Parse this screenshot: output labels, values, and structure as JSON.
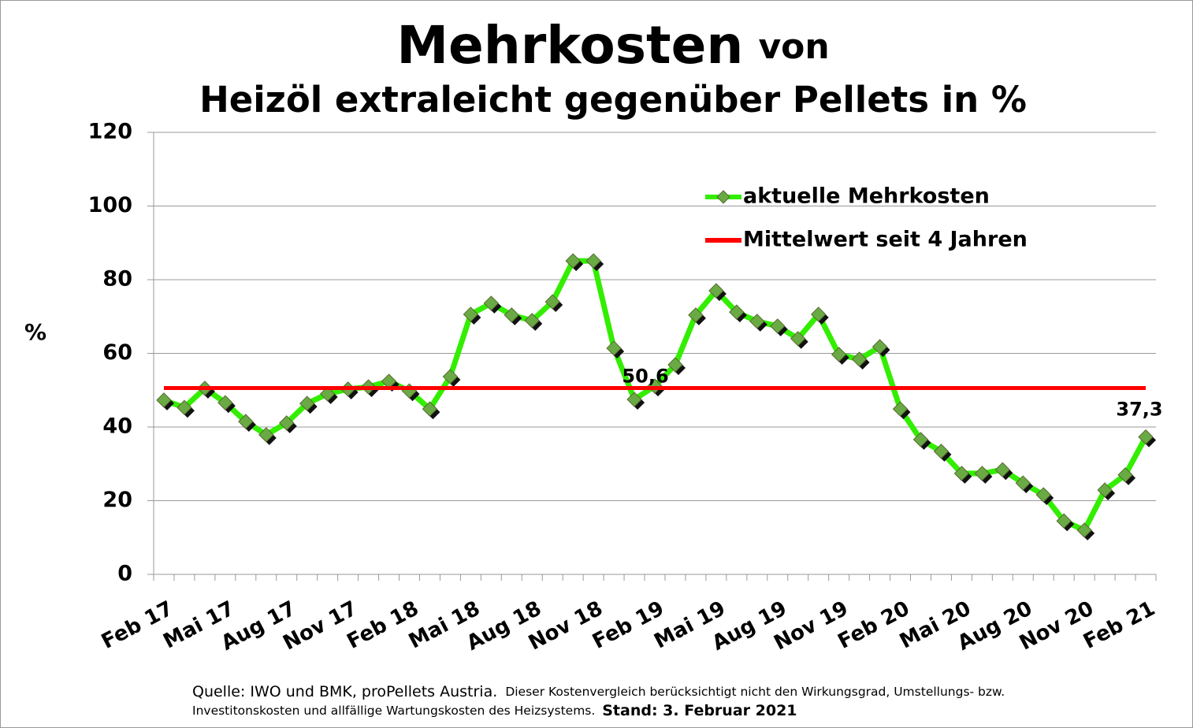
{
  "chart_data": {
    "type": "line",
    "title": "Mehrkosten",
    "title_suffix": "von",
    "subtitle": "Heizöl extraleicht gegenüber Pellets in %",
    "y_label": "%",
    "categories": [
      "Feb 17",
      null,
      null,
      "Mai 17",
      null,
      null,
      "Aug 17",
      null,
      null,
      "Nov 17",
      null,
      null,
      "Feb 18",
      null,
      null,
      "Mai 18",
      null,
      null,
      "Aug 18",
      null,
      null,
      "Nov 18",
      null,
      null,
      "Feb 19",
      null,
      null,
      "Mai 19",
      null,
      null,
      "Aug 19",
      null,
      null,
      "Nov 19",
      null,
      null,
      "Feb 20",
      null,
      null,
      "Mai 20",
      null,
      null,
      "Aug 20",
      null,
      null,
      "Nov 20",
      null,
      null,
      "Feb 21"
    ],
    "series": [
      {
        "name": "aktuelle Mehrkosten",
        "color": "#33ee00",
        "marker_color": "#6aaa44",
        "values": [
          47.3,
          45.3,
          50.5,
          46.6,
          41.5,
          37.9,
          41.1,
          46.4,
          49,
          50.3,
          50.9,
          52.4,
          49.8,
          44.9,
          53.7,
          70.6,
          73.6,
          70.4,
          68.9,
          74,
          85.1,
          85.1,
          61.4,
          47.5,
          51.1,
          56.9,
          70.4,
          77,
          71.2,
          68.7,
          67.4,
          64,
          70.6,
          59.7,
          58.4,
          61.8,
          44.9,
          36.6,
          33.4,
          27.4,
          27.4,
          28.4,
          24.8,
          21.6,
          14.5,
          12,
          22.9,
          27,
          37.3
        ],
        "value_labels": [
          null,
          null,
          null,
          null,
          null,
          null,
          null,
          null,
          null,
          null,
          null,
          null,
          null,
          null,
          null,
          null,
          null,
          null,
          null,
          null,
          null,
          null,
          null,
          null,
          null,
          null,
          null,
          null,
          null,
          null,
          null,
          null,
          null,
          null,
          null,
          null,
          null,
          null,
          null,
          null,
          null,
          null,
          null,
          null,
          null,
          null,
          null,
          null,
          "37,3"
        ]
      },
      {
        "name": "Mittelwert seit 4 Jahren",
        "color": "#ff0000",
        "value": 50.6,
        "value_label": "50,6"
      }
    ],
    "ylim": [
      0,
      120
    ],
    "yticks": [
      0,
      20,
      40,
      60,
      80,
      100,
      120
    ],
    "grid": true,
    "legend": "upper right",
    "footnote": {
      "source": "Quelle: IWO und BMK, proPellets Austria.",
      "note": [
        "Dieser Kostenvergleich berücksichtigt nicht den Wirkungsgrad, Umstellungs- bzw.",
        "Investitonskosten und allfällige Wartungskosten des Heizsystems."
      ],
      "stand": "Stand: 3. Februar 2021"
    }
  }
}
